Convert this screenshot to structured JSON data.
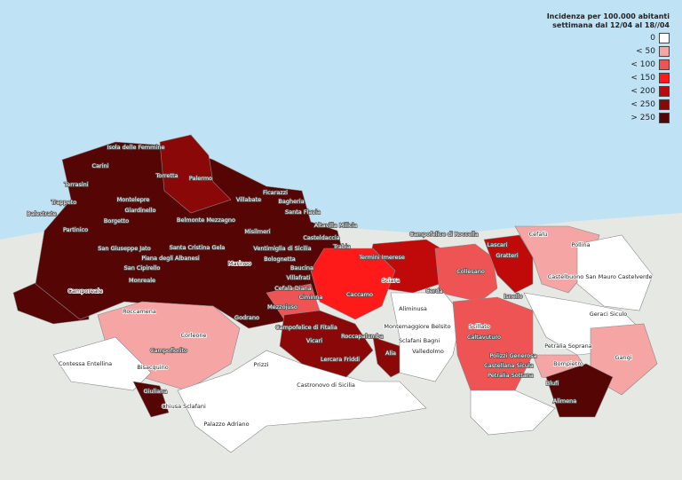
{
  "legend": {
    "title_line1": "Incidenza per 100.000 abitanti",
    "title_line2": "settimana dal 12/04 al 18//04",
    "classes": [
      {
        "label": "0",
        "color": "#ffffff"
      },
      {
        "label": "< 50",
        "color": "#f6a5a5"
      },
      {
        "label": "< 100",
        "color": "#ee5454"
      },
      {
        "label": "< 150",
        "color": "#ff1a1a"
      },
      {
        "label": "< 200",
        "color": "#c00a0a"
      },
      {
        "label": "< 250",
        "color": "#8a0808"
      },
      {
        "label": "> 250",
        "color": "#560505"
      }
    ]
  },
  "municipalities": [
    {
      "name": "Isola delle Femmine",
      "cls": 6
    },
    {
      "name": "Carini",
      "cls": 6
    },
    {
      "name": "Torretta",
      "cls": 6
    },
    {
      "name": "Palermo",
      "cls": 5
    },
    {
      "name": "Terrasini",
      "cls": 5
    },
    {
      "name": "Trappeto",
      "cls": 2
    },
    {
      "name": "Montelepre",
      "cls": 6
    },
    {
      "name": "Giardinello",
      "cls": 6
    },
    {
      "name": "Balestrate",
      "cls": 2
    },
    {
      "name": "Borgetto",
      "cls": 6
    },
    {
      "name": "Partinico",
      "cls": 6
    },
    {
      "name": "Villabate",
      "cls": 5
    },
    {
      "name": "Ficarazzi",
      "cls": 6
    },
    {
      "name": "Bagheria",
      "cls": 5
    },
    {
      "name": "Santa Flavia",
      "cls": 5
    },
    {
      "name": "Altavilla Milicia",
      "cls": 5
    },
    {
      "name": "Casteldaccia",
      "cls": 5
    },
    {
      "name": "Misilmeri",
      "cls": 6
    },
    {
      "name": "Belmonte Mezzagno",
      "cls": 5
    },
    {
      "name": "Santa Cristina Gela",
      "cls": 6
    },
    {
      "name": "Piana degli Albanesi",
      "cls": 6
    },
    {
      "name": "San Giuseppe Jato",
      "cls": 2
    },
    {
      "name": "San Cipirello",
      "cls": 6
    },
    {
      "name": "Monreale",
      "cls": 6
    },
    {
      "name": "Camporeale",
      "cls": 0
    },
    {
      "name": "Marineo",
      "cls": 1
    },
    {
      "name": "Ventimiglia di Sicilia",
      "cls": 5
    },
    {
      "name": "Bolognetta",
      "cls": 5
    },
    {
      "name": "Baucina",
      "cls": 6
    },
    {
      "name": "Villafrati",
      "cls": 6
    },
    {
      "name": "Cefalà Diana",
      "cls": 6
    },
    {
      "name": "Ciminna",
      "cls": 2
    },
    {
      "name": "Trabia",
      "cls": 3
    },
    {
      "name": "Termini Imerese",
      "cls": 4
    },
    {
      "name": "Mezzojuso",
      "cls": 6
    },
    {
      "name": "Godrano",
      "cls": 2
    },
    {
      "name": "Campofelice di Roccella",
      "cls": 6
    },
    {
      "name": "Lascari",
      "cls": 4
    },
    {
      "name": "Cefalù",
      "cls": 1
    },
    {
      "name": "Gratteri",
      "cls": 3
    },
    {
      "name": "Pollina",
      "cls": 1
    },
    {
      "name": "Collesano",
      "cls": 2
    },
    {
      "name": "Castelbuono",
      "cls": 1
    },
    {
      "name": "San Mauro Castelverde",
      "cls": 0
    },
    {
      "name": "Sciara",
      "cls": 0
    },
    {
      "name": "Caccamo",
      "cls": 3
    },
    {
      "name": "Cerda",
      "cls": 4
    },
    {
      "name": "Isnello",
      "cls": 3
    },
    {
      "name": "Geraci Siculo",
      "cls": 0
    },
    {
      "name": "Aliminusa",
      "cls": 0
    },
    {
      "name": "Montemaggiore Belsito",
      "cls": 0
    },
    {
      "name": "Sclafani Bagni",
      "cls": 0
    },
    {
      "name": "Valledolmo",
      "cls": 0
    },
    {
      "name": "Scillato",
      "cls": 0
    },
    {
      "name": "Caltavuturo",
      "cls": 2
    },
    {
      "name": "Petralia Soprana",
      "cls": 0
    },
    {
      "name": "Polizzi Generosa",
      "cls": 2
    },
    {
      "name": "Castellana Sicula",
      "cls": 2
    },
    {
      "name": "Petralia Sottana",
      "cls": 2
    },
    {
      "name": "Gangi",
      "cls": 1
    },
    {
      "name": "Bompietro",
      "cls": 1
    },
    {
      "name": "Blufi",
      "cls": 6
    },
    {
      "name": "Alimena",
      "cls": 6
    },
    {
      "name": "Roccamena",
      "cls": 0
    },
    {
      "name": "Corleone",
      "cls": 1
    },
    {
      "name": "Campofiorito",
      "cls": 2
    },
    {
      "name": "Bisacquino",
      "cls": 1
    },
    {
      "name": "Contessa Entellina",
      "cls": 0
    },
    {
      "name": "Giuliana",
      "cls": 6
    },
    {
      "name": "Chiusa Sclafani",
      "cls": 0
    },
    {
      "name": "Palazzo Adriano",
      "cls": 0
    },
    {
      "name": "Prizzi",
      "cls": 0
    },
    {
      "name": "Castronovo di Sicilia",
      "cls": 0
    },
    {
      "name": "Campofelice di Fitalia",
      "cls": 5
    },
    {
      "name": "Vicari",
      "cls": 5
    },
    {
      "name": "Roccapalumba",
      "cls": 2
    },
    {
      "name": "Lercara Friddi",
      "cls": 5
    },
    {
      "name": "Alia",
      "cls": 5
    }
  ]
}
